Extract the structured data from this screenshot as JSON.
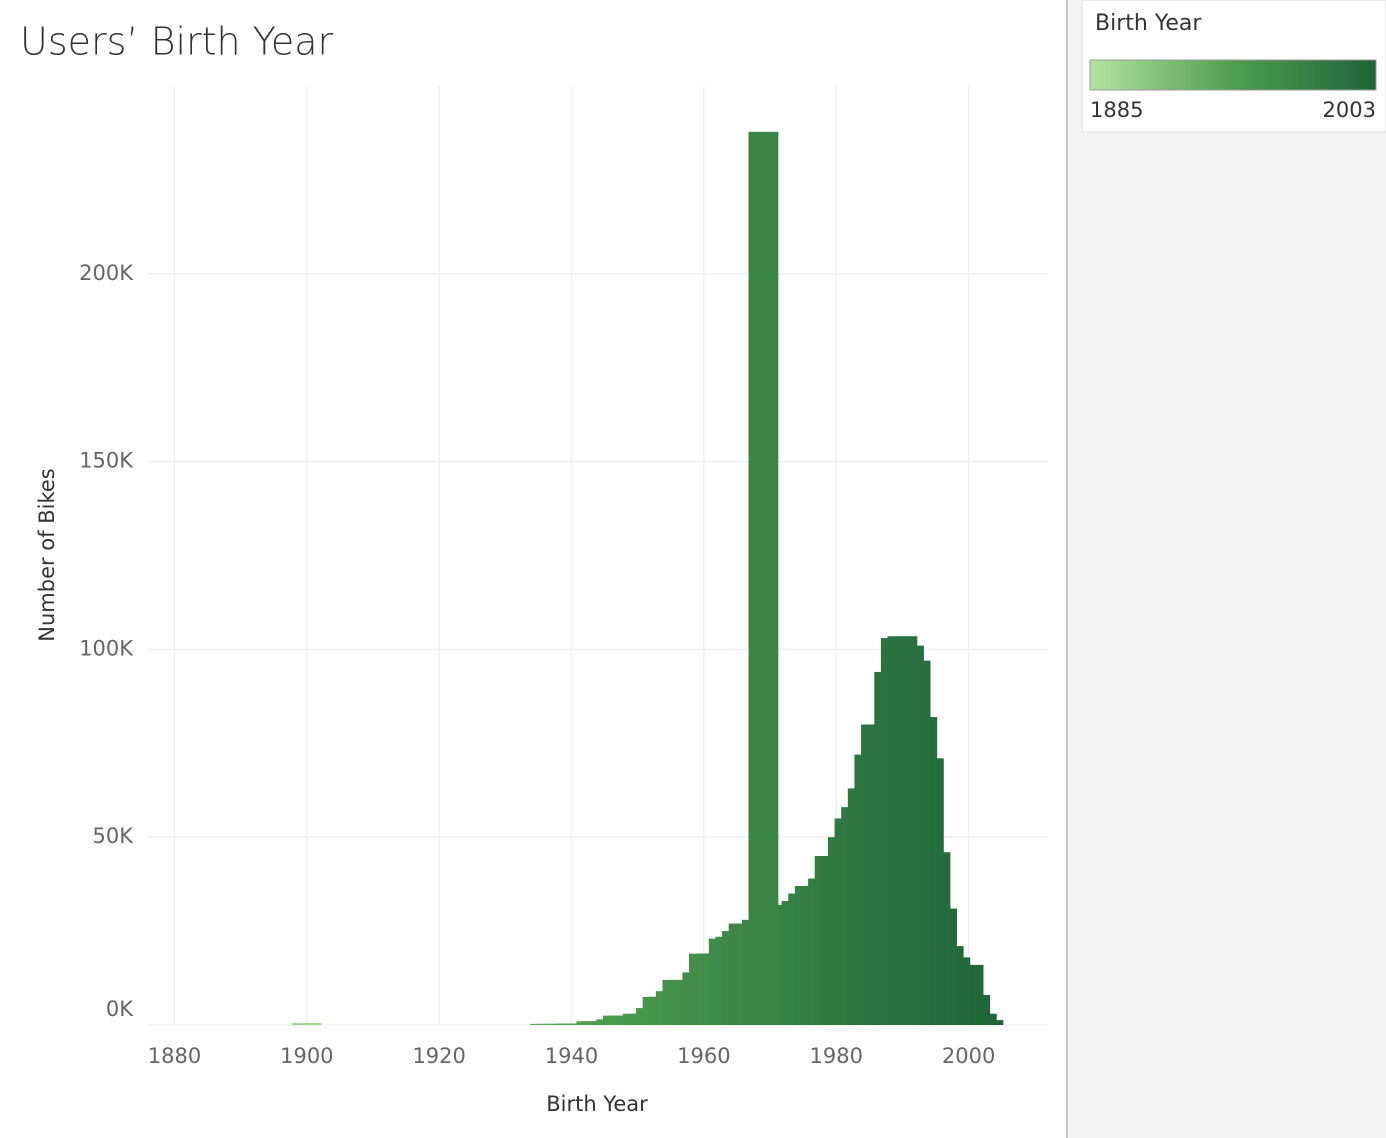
{
  "chart_data": {
    "type": "bar",
    "title": "Users’ Birth Year",
    "x_label": "Birth Year",
    "y_label": "Number of Bikes",
    "x": [
      1900,
      1936,
      1937,
      1938,
      1939,
      1940,
      1941,
      1942,
      1943,
      1944,
      1945,
      1946,
      1947,
      1948,
      1949,
      1950,
      1951,
      1952,
      1953,
      1954,
      1955,
      1956,
      1957,
      1958,
      1959,
      1960,
      1961,
      1962,
      1963,
      1964,
      1965,
      1966,
      1967,
      1968,
      1969,
      1970,
      1971,
      1972,
      1973,
      1974,
      1975,
      1976,
      1977,
      1978,
      1979,
      1980,
      1981,
      1982,
      1983,
      1984,
      1985,
      1986,
      1987,
      1988,
      1989,
      1990,
      1991,
      1992,
      1993,
      1994,
      1995,
      1996,
      1997,
      1998,
      1999,
      2000,
      2001,
      2002,
      2003
    ],
    "values": [
      500,
      300,
      300,
      300,
      300,
      400,
      400,
      400,
      1000,
      1000,
      1000,
      1500,
      2500,
      2500,
      2500,
      3000,
      3000,
      4500,
      7500,
      7500,
      9000,
      12000,
      12000,
      12000,
      14000,
      19000,
      19000,
      19000,
      23000,
      23500,
      25000,
      27000,
      27000,
      28000,
      237800,
      29000,
      30000,
      31000,
      32000,
      33000,
      35000,
      37000,
      37000,
      39000,
      45000,
      45000,
      50000,
      55000,
      58000,
      63000,
      72000,
      80000,
      80000,
      94000,
      103000,
      103500,
      101000,
      97000,
      82000,
      71000,
      46000,
      31000,
      21000,
      18000,
      16000,
      16000,
      8000,
      3000,
      1300
    ],
    "xlim": [
      1876,
      2012
    ],
    "xticks": [
      1880,
      1900,
      1920,
      1940,
      1960,
      1980,
      2000
    ],
    "ylim": [
      0,
      250000
    ],
    "yticks": [
      {
        "value": 0,
        "label": "0K"
      },
      {
        "value": 50000,
        "label": "50K"
      },
      {
        "value": 100000,
        "label": "100K"
      },
      {
        "value": 150000,
        "label": "150K"
      },
      {
        "value": 200000,
        "label": "200K"
      }
    ],
    "grid": true,
    "legend": {
      "title": "Birth Year",
      "domain": [
        1885,
        2003
      ],
      "colors": [
        "#b4e3a0",
        "#4f9e50",
        "#1e6439"
      ]
    }
  }
}
